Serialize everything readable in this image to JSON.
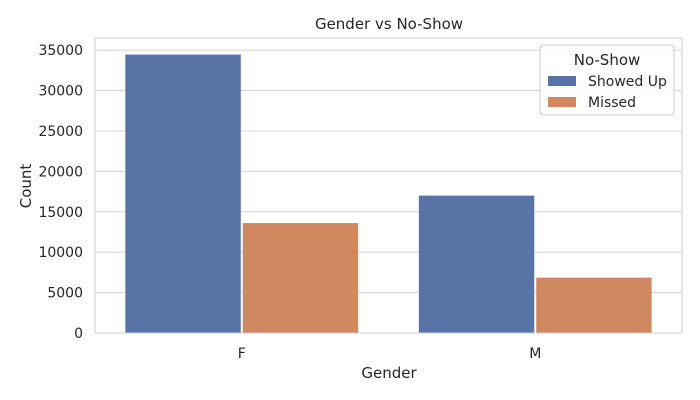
{
  "chart_data": {
    "type": "bar",
    "title": "Gender vs No-Show",
    "xlabel": "Gender",
    "ylabel": "Count",
    "categories": [
      "F",
      "M"
    ],
    "series": [
      {
        "name": "Showed Up",
        "color": "#5874a6",
        "values": [
          34450,
          17000
        ]
      },
      {
        "name": "Missed",
        "color": "#cf8860",
        "values": [
          13600,
          6850
        ]
      }
    ],
    "ylim": [
      0,
      36500
    ],
    "yticks": [
      0,
      5000,
      10000,
      15000,
      20000,
      25000,
      30000,
      35000
    ],
    "ytick_labels": [
      "0",
      "5000",
      "10000",
      "15000",
      "20000",
      "25000",
      "30000",
      "35000"
    ],
    "grid": true,
    "legend": {
      "title": "No-Show",
      "placement": "top-right"
    }
  }
}
